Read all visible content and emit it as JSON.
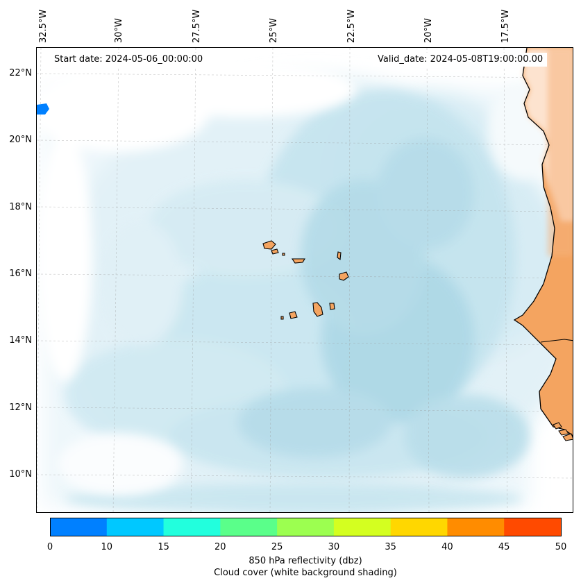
{
  "header": {
    "start_date": "Start date: 2024-05-06_00:00:00",
    "valid_date": "Valid_date: 2024-05-08T19:00:00.00"
  },
  "axes": {
    "lon_labels": [
      "32.5°W",
      "30°W",
      "27.5°W",
      "25°W",
      "22.5°W",
      "20°W",
      "17.5°W"
    ],
    "lat_labels": [
      "22°N",
      "20°N",
      "18°N",
      "16°N",
      "14°N",
      "12°N",
      "10°N"
    ]
  },
  "colorbar": {
    "ticks": [
      "0",
      "10",
      "15",
      "20",
      "25",
      "30",
      "35",
      "40",
      "45",
      "50"
    ],
    "colors": [
      "#0080ff",
      "#00c8ff",
      "#22ffdd",
      "#5aff8a",
      "#9cff50",
      "#d4ff20",
      "#ffd700",
      "#ff8c00",
      "#ff4a00"
    ],
    "label_line1": "850 hPa reflectivity (dbz)",
    "label_line2": "Cloud cover (white background shading)"
  },
  "colors": {
    "cloud": "#add8e6",
    "land": "#f4a460",
    "land_light": "#fde3cf",
    "reflectivity_blob": "#0080ff"
  }
}
